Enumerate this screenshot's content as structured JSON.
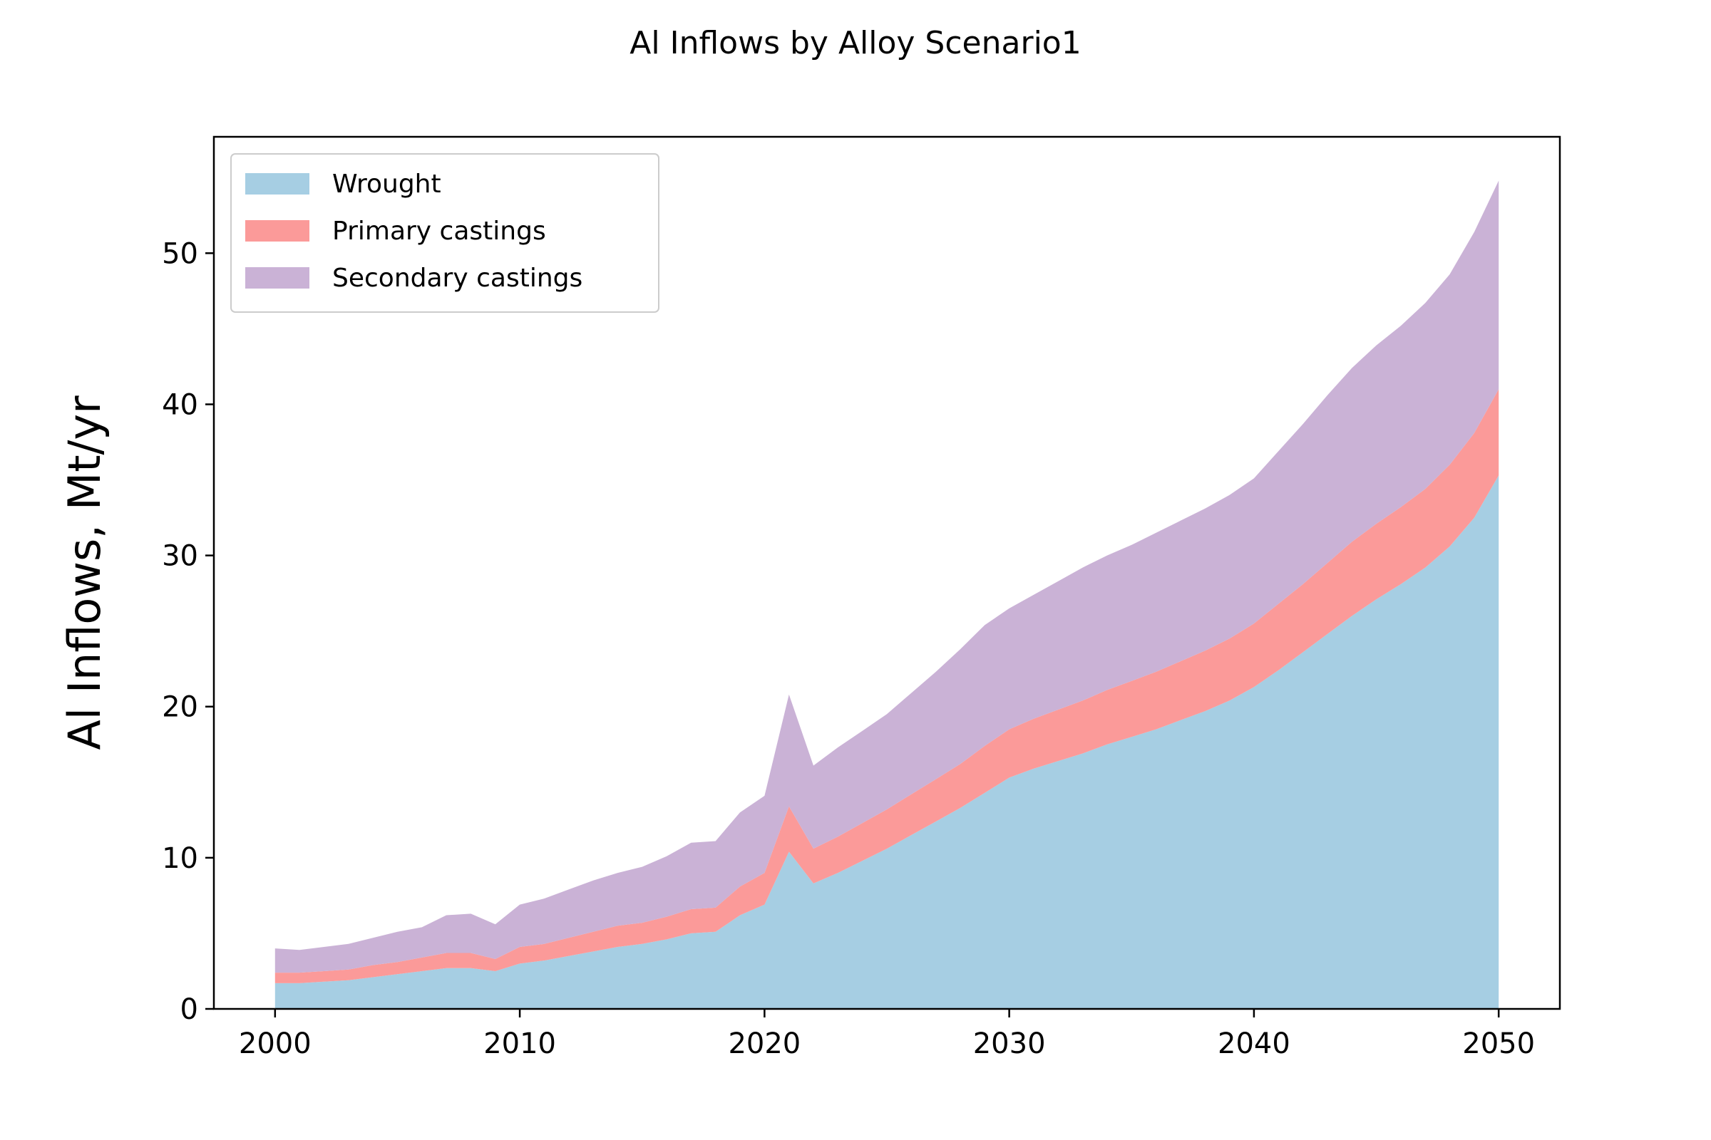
{
  "chart_data": {
    "type": "area",
    "stacked": true,
    "title": "Al Inflows by Alloy Scenario1",
    "xlabel": "",
    "ylabel": "Al Inflows, Mt/yr",
    "xlim": [
      1997.5,
      2052.5
    ],
    "ylim": [
      0,
      57.7
    ],
    "xticks": [
      2000,
      2010,
      2020,
      2030,
      2040,
      2050
    ],
    "yticks": [
      0,
      10,
      20,
      30,
      40,
      50
    ],
    "grid": false,
    "legend_position": "upper left",
    "x": [
      2000,
      2001,
      2002,
      2003,
      2004,
      2005,
      2006,
      2007,
      2008,
      2009,
      2010,
      2011,
      2012,
      2013,
      2014,
      2015,
      2016,
      2017,
      2018,
      2019,
      2020,
      2021,
      2022,
      2023,
      2024,
      2025,
      2026,
      2027,
      2028,
      2029,
      2030,
      2031,
      2032,
      2033,
      2034,
      2035,
      2036,
      2037,
      2038,
      2039,
      2040,
      2041,
      2042,
      2043,
      2044,
      2045,
      2046,
      2047,
      2048,
      2049,
      2050
    ],
    "series": [
      {
        "name": "Wrought",
        "color": "#a6cee3",
        "values": [
          1.7,
          1.7,
          1.8,
          1.9,
          2.1,
          2.3,
          2.5,
          2.7,
          2.7,
          2.5,
          3.0,
          3.2,
          3.5,
          3.8,
          4.1,
          4.3,
          4.6,
          5.0,
          5.1,
          6.2,
          6.9,
          10.4,
          8.3,
          9.0,
          9.8,
          10.6,
          11.5,
          12.4,
          13.3,
          14.3,
          15.3,
          15.9,
          16.4,
          16.9,
          17.5,
          18.0,
          18.5,
          19.1,
          19.7,
          20.4,
          21.3,
          22.4,
          23.6,
          24.8,
          26.0,
          27.1,
          28.1,
          29.2,
          30.6,
          32.5,
          35.3
        ]
      },
      {
        "name": "Primary castings",
        "color": "#fb9a99",
        "values": [
          0.7,
          0.7,
          0.7,
          0.7,
          0.8,
          0.8,
          0.9,
          1.0,
          1.0,
          0.8,
          1.1,
          1.1,
          1.2,
          1.3,
          1.4,
          1.4,
          1.5,
          1.6,
          1.6,
          1.9,
          2.1,
          3.0,
          2.3,
          2.4,
          2.5,
          2.6,
          2.7,
          2.8,
          2.9,
          3.1,
          3.2,
          3.3,
          3.4,
          3.5,
          3.6,
          3.7,
          3.8,
          3.9,
          4.0,
          4.1,
          4.2,
          4.4,
          4.5,
          4.7,
          4.9,
          5.0,
          5.1,
          5.2,
          5.4,
          5.6,
          5.7
        ]
      },
      {
        "name": "Secondary castings",
        "color": "#cab2d6",
        "values": [
          1.6,
          1.5,
          1.6,
          1.7,
          1.8,
          2.0,
          2.0,
          2.5,
          2.6,
          2.3,
          2.8,
          3.0,
          3.2,
          3.4,
          3.5,
          3.7,
          4.0,
          4.4,
          4.4,
          4.9,
          5.1,
          7.4,
          5.5,
          5.9,
          6.1,
          6.3,
          6.7,
          7.1,
          7.6,
          8.0,
          8.0,
          8.2,
          8.5,
          8.8,
          8.9,
          9.0,
          9.2,
          9.3,
          9.4,
          9.5,
          9.6,
          10.1,
          10.6,
          11.1,
          11.5,
          11.8,
          12.0,
          12.3,
          12.6,
          13.3,
          13.8
        ]
      }
    ]
  }
}
